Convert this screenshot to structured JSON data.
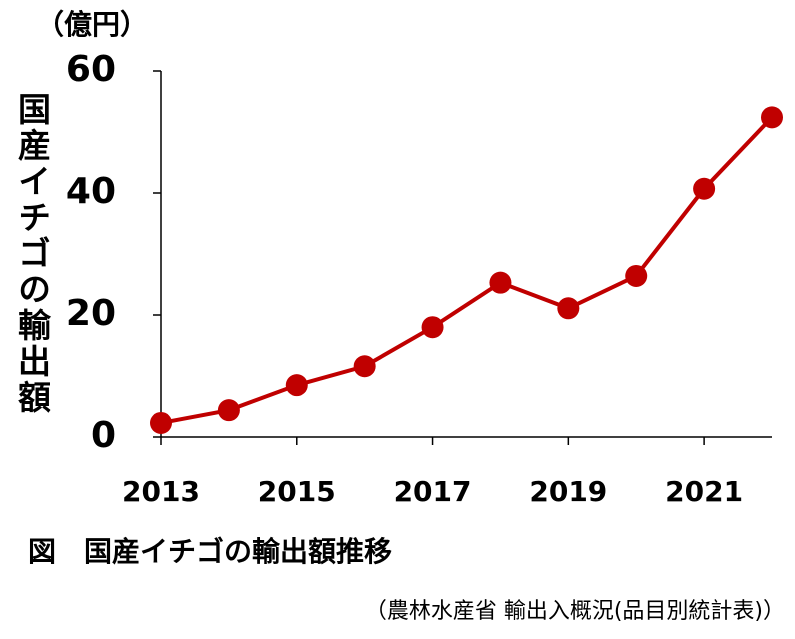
{
  "chart_data": {
    "type": "line",
    "unit_label": "（億円）",
    "y_label": "国産イチゴの輸出額",
    "caption": "図　国産イチゴの輸出額推移",
    "source": "（農林水産省 輸出入概況(品目別統計表)）",
    "x": [
      2013,
      2014,
      2015,
      2016,
      2017,
      2018,
      2019,
      2020,
      2021,
      2022
    ],
    "series": [
      {
        "name": "輸出額",
        "color": "#c00000",
        "values": [
          2.3,
          4.4,
          8.5,
          11.6,
          18,
          25.3,
          21.1,
          26.4,
          40.7,
          52.4
        ]
      }
    ],
    "xlim": [
      2013,
      2022
    ],
    "xticks": [
      2013,
      2015,
      2017,
      2019,
      2021
    ],
    "ylim": [
      0,
      60
    ],
    "yticks": [
      0,
      20,
      40,
      60
    ],
    "grid": false
  }
}
